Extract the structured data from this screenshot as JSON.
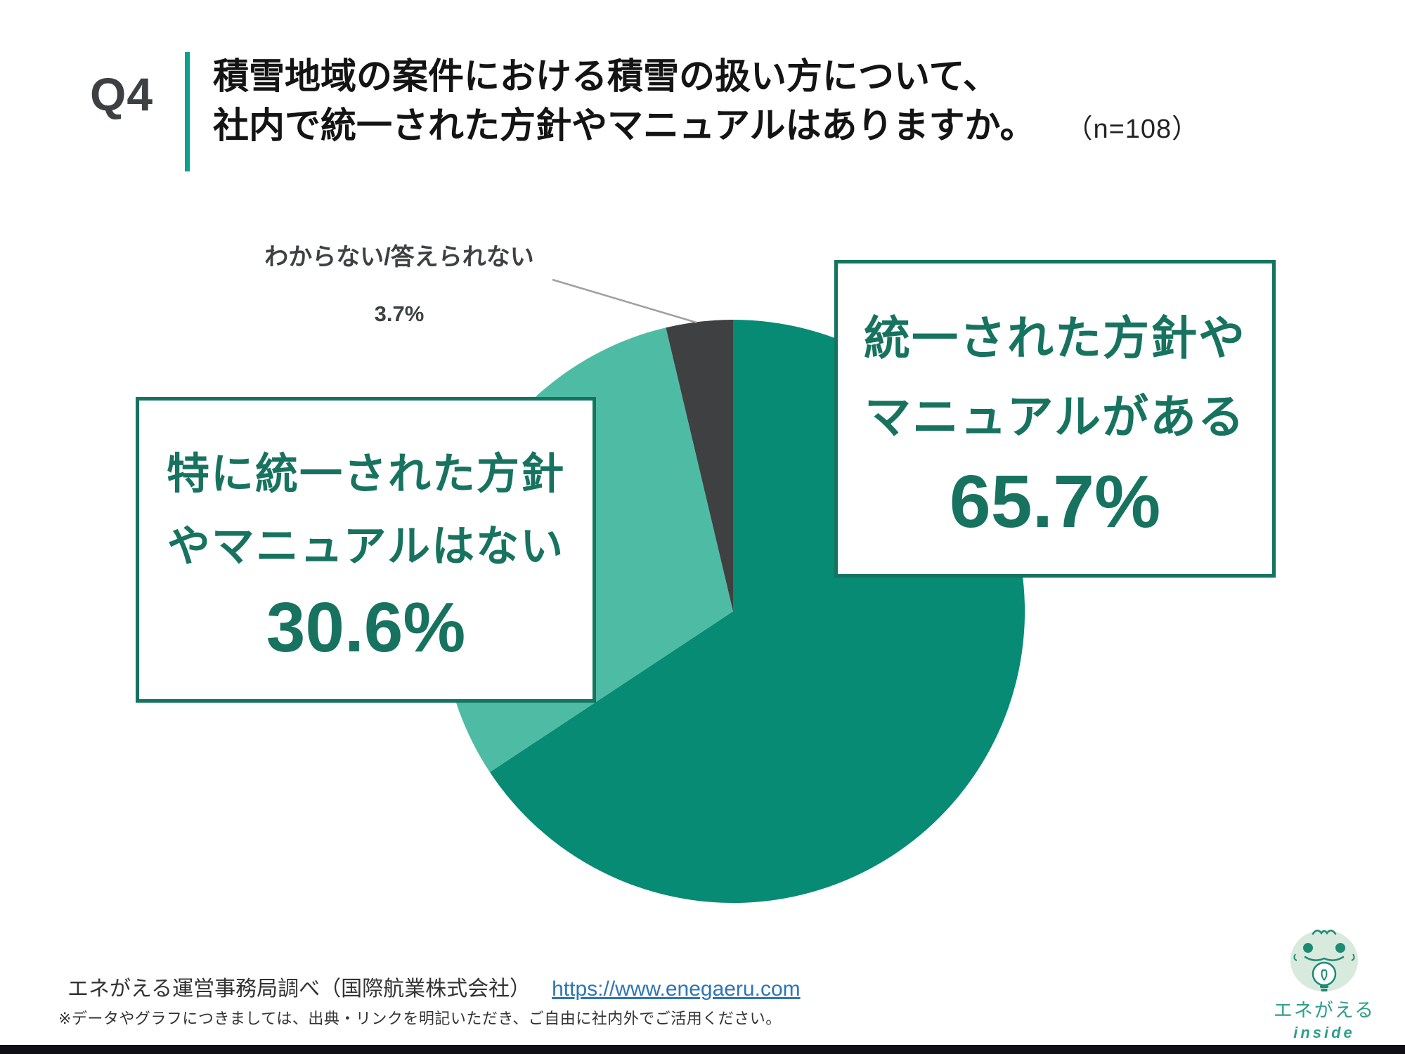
{
  "header": {
    "question_no": "Q4",
    "title_line1": "積雪地域の案件における積雪の扱い方について、",
    "title_line2": "社内で統一された方針やマニュアルはありますか。",
    "sample_note": "（n=108）"
  },
  "chart_data": {
    "type": "pie",
    "title": "積雪地域の案件における積雪の扱い方について、社内で統一された方針やマニュアルはありますか。",
    "n_total": 108,
    "start_angle_deg": 0,
    "direction": "clockwise",
    "slices": [
      {
        "label": "統一された方針やマニュアルがある",
        "value": 65.7,
        "color": "#078b74"
      },
      {
        "label": "特に統一された方針やマニュアルはない",
        "value": 30.6,
        "color": "#4ebca4"
      },
      {
        "label": "わからない/答えられない",
        "value": 3.7,
        "color": "#3f4041"
      }
    ],
    "legend_position": "callout-labels"
  },
  "callouts": {
    "majority": {
      "line1": "統一された方針や",
      "line2": "マニュアルがある",
      "percent": "65.7%"
    },
    "minority": {
      "line1": "特に統一された方針",
      "line2": "やマニュアルはない",
      "percent": "30.6%"
    },
    "unknown": {
      "label": "わからない/答えられない",
      "percent": "3.7%"
    }
  },
  "footer": {
    "source": "エネがえる運営事務局調べ（国際航業株式会社）",
    "link": "https://www.enegaeru.com",
    "note": "※データやグラフにつきましては、出典・リンクを明記いただき、ご自由に社内外でご活用ください。"
  },
  "logo": {
    "brand": "エネがえる",
    "sub": "inside"
  },
  "colors": {
    "accent_bar": "#0ba18c",
    "pie_majority": "#078b74",
    "pie_minority": "#4ebca4",
    "pie_unknown": "#3f4041",
    "callout_border": "#14745f",
    "callout_text": "#17735f",
    "link_blue": "#2e75b6",
    "leader_line": "#a0a0a0"
  }
}
